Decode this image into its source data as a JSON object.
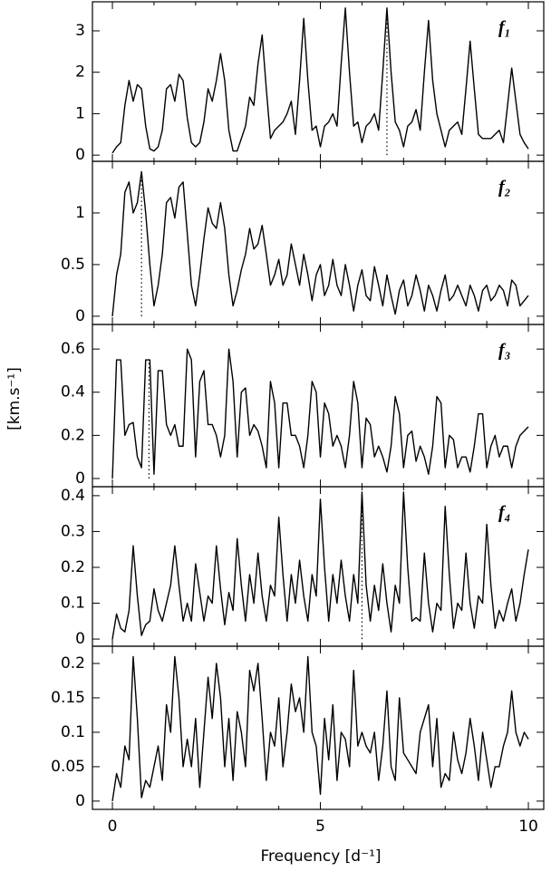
{
  "figure": {
    "xlabel": "Frequency [d⁻¹]",
    "ylabel": "[km.s⁻¹]"
  },
  "chart_data": [
    {
      "type": "line",
      "label": "f₁",
      "color": "#000000",
      "marker_x": 6.6,
      "xlim": [
        -0.48,
        10.37
      ],
      "xticks": [
        0,
        5,
        10
      ],
      "xminor": [
        1,
        2,
        3,
        4,
        6,
        7,
        8,
        9
      ],
      "ylim": [
        -0.15,
        3.7
      ],
      "yticks": [
        0,
        1,
        2,
        3
      ],
      "x": [
        0,
        0.1,
        0.2,
        0.3,
        0.4,
        0.5,
        0.6,
        0.7,
        0.8,
        0.9,
        1,
        1.1,
        1.2,
        1.3,
        1.4,
        1.5,
        1.6,
        1.7,
        1.8,
        1.9,
        2,
        2.1,
        2.2,
        2.3,
        2.4,
        2.5,
        2.6,
        2.7,
        2.8,
        2.9,
        3,
        3.1,
        3.2,
        3.3,
        3.4,
        3.5,
        3.6,
        3.7,
        3.8,
        3.9,
        4,
        4.1,
        4.2,
        4.3,
        4.4,
        4.5,
        4.6,
        4.7,
        4.8,
        4.9,
        5,
        5.1,
        5.2,
        5.3,
        5.4,
        5.5,
        5.6,
        5.7,
        5.8,
        5.9,
        6,
        6.1,
        6.2,
        6.3,
        6.4,
        6.5,
        6.6,
        6.7,
        6.8,
        6.9,
        7,
        7.1,
        7.2,
        7.3,
        7.4,
        7.5,
        7.6,
        7.7,
        7.8,
        7.9,
        8,
        8.1,
        8.2,
        8.3,
        8.4,
        8.5,
        8.6,
        8.7,
        8.8,
        8.9,
        9,
        9.1,
        9.2,
        9.3,
        9.4,
        9.5,
        9.6,
        9.7,
        9.8,
        9.9,
        10
      ],
      "values": [
        0.05,
        0.2,
        0.3,
        1.2,
        1.8,
        1.3,
        1.7,
        1.6,
        0.7,
        0.15,
        0.1,
        0.2,
        0.6,
        1.6,
        1.7,
        1.3,
        1.95,
        1.8,
        0.9,
        0.3,
        0.2,
        0.3,
        0.8,
        1.6,
        1.3,
        1.8,
        2.45,
        1.8,
        0.6,
        0.1,
        0.1,
        0.4,
        0.7,
        1.4,
        1.2,
        2.2,
        2.9,
        1.6,
        0.4,
        0.6,
        0.7,
        0.8,
        1.0,
        1.3,
        0.5,
        1.8,
        3.3,
        1.8,
        0.6,
        0.7,
        0.2,
        0.7,
        0.8,
        1.0,
        0.7,
        2.2,
        3.55,
        2.0,
        0.7,
        0.8,
        0.3,
        0.7,
        0.8,
        1.0,
        0.6,
        2.0,
        3.55,
        2.0,
        0.8,
        0.6,
        0.2,
        0.7,
        0.8,
        1.1,
        0.6,
        2.0,
        3.25,
        1.8,
        1.0,
        0.6,
        0.2,
        0.6,
        0.7,
        0.8,
        0.5,
        1.6,
        2.75,
        1.6,
        0.5,
        0.4,
        0.4,
        0.4,
        0.5,
        0.6,
        0.3,
        1.2,
        2.1,
        1.3,
        0.5,
        0.3,
        0.15
      ]
    },
    {
      "type": "line",
      "label": "f₂",
      "color": "#000000",
      "marker_x": 0.7,
      "xlim": [
        -0.48,
        10.37
      ],
      "xticks": [
        0,
        5,
        10
      ],
      "xminor": [
        1,
        2,
        3,
        4,
        6,
        7,
        8,
        9
      ],
      "ylim": [
        -0.08,
        1.5
      ],
      "yticks": [
        0,
        0.5,
        1
      ],
      "x": [
        0,
        0.1,
        0.2,
        0.3,
        0.4,
        0.5,
        0.6,
        0.7,
        0.8,
        0.9,
        1,
        1.1,
        1.2,
        1.3,
        1.4,
        1.5,
        1.6,
        1.7,
        1.8,
        1.9,
        2,
        2.1,
        2.2,
        2.3,
        2.4,
        2.5,
        2.6,
        2.7,
        2.8,
        2.9,
        3,
        3.1,
        3.2,
        3.3,
        3.4,
        3.5,
        3.6,
        3.7,
        3.8,
        3.9,
        4,
        4.1,
        4.2,
        4.3,
        4.4,
        4.5,
        4.6,
        4.7,
        4.8,
        4.9,
        5,
        5.1,
        5.2,
        5.3,
        5.4,
        5.5,
        5.6,
        5.7,
        5.8,
        5.9,
        6,
        6.1,
        6.2,
        6.3,
        6.4,
        6.5,
        6.6,
        6.7,
        6.8,
        6.9,
        7,
        7.1,
        7.2,
        7.3,
        7.4,
        7.5,
        7.6,
        7.7,
        7.8,
        7.9,
        8,
        8.1,
        8.2,
        8.3,
        8.4,
        8.5,
        8.6,
        8.7,
        8.8,
        8.9,
        9,
        9.1,
        9.2,
        9.3,
        9.4,
        9.5,
        9.6,
        9.7,
        9.8,
        9.9,
        10
      ],
      "values": [
        0.0,
        0.4,
        0.6,
        1.2,
        1.3,
        1.0,
        1.1,
        1.4,
        1.0,
        0.5,
        0.1,
        0.3,
        0.6,
        1.1,
        1.15,
        0.95,
        1.25,
        1.3,
        0.8,
        0.3,
        0.1,
        0.4,
        0.75,
        1.05,
        0.9,
        0.85,
        1.1,
        0.85,
        0.4,
        0.1,
        0.25,
        0.45,
        0.6,
        0.85,
        0.65,
        0.7,
        0.88,
        0.6,
        0.3,
        0.4,
        0.55,
        0.3,
        0.4,
        0.7,
        0.5,
        0.3,
        0.6,
        0.4,
        0.15,
        0.4,
        0.5,
        0.2,
        0.3,
        0.55,
        0.3,
        0.2,
        0.5,
        0.3,
        0.05,
        0.3,
        0.45,
        0.2,
        0.15,
        0.48,
        0.3,
        0.1,
        0.4,
        0.2,
        0.02,
        0.25,
        0.35,
        0.1,
        0.2,
        0.4,
        0.25,
        0.05,
        0.3,
        0.2,
        0.05,
        0.25,
        0.4,
        0.15,
        0.2,
        0.3,
        0.2,
        0.1,
        0.3,
        0.2,
        0.05,
        0.25,
        0.3,
        0.15,
        0.2,
        0.3,
        0.25,
        0.1,
        0.35,
        0.3,
        0.1,
        0.15,
        0.2
      ]
    },
    {
      "type": "line",
      "label": "f₃",
      "color": "#000000",
      "marker_x": 0.88,
      "xlim": [
        -0.48,
        10.37
      ],
      "xticks": [
        0,
        5,
        10
      ],
      "xminor": [
        1,
        2,
        3,
        4,
        6,
        7,
        8,
        9
      ],
      "ylim": [
        -0.038,
        0.714
      ],
      "yticks": [
        0,
        0.2,
        0.4,
        0.6
      ],
      "x": [
        0,
        0.1,
        0.2,
        0.3,
        0.4,
        0.5,
        0.6,
        0.7,
        0.8,
        0.9,
        1,
        1.1,
        1.2,
        1.3,
        1.4,
        1.5,
        1.6,
        1.7,
        1.8,
        1.9,
        2,
        2.1,
        2.2,
        2.3,
        2.4,
        2.5,
        2.6,
        2.7,
        2.8,
        2.9,
        3,
        3.1,
        3.2,
        3.3,
        3.4,
        3.5,
        3.6,
        3.7,
        3.8,
        3.9,
        4,
        4.1,
        4.2,
        4.3,
        4.4,
        4.5,
        4.6,
        4.7,
        4.8,
        4.9,
        5,
        5.1,
        5.2,
        5.3,
        5.4,
        5.5,
        5.6,
        5.7,
        5.8,
        5.9,
        6,
        6.1,
        6.2,
        6.3,
        6.4,
        6.5,
        6.6,
        6.7,
        6.8,
        6.9,
        7,
        7.1,
        7.2,
        7.3,
        7.4,
        7.5,
        7.6,
        7.7,
        7.8,
        7.9,
        8,
        8.1,
        8.2,
        8.3,
        8.4,
        8.5,
        8.6,
        8.7,
        8.8,
        8.9,
        9,
        9.1,
        9.2,
        9.3,
        9.4,
        9.5,
        9.6,
        9.7,
        9.8,
        9.9,
        10
      ],
      "values": [
        0.0,
        0.55,
        0.55,
        0.2,
        0.25,
        0.26,
        0.1,
        0.05,
        0.55,
        0.55,
        0.02,
        0.5,
        0.5,
        0.25,
        0.2,
        0.25,
        0.15,
        0.15,
        0.6,
        0.55,
        0.1,
        0.45,
        0.5,
        0.25,
        0.25,
        0.2,
        0.1,
        0.2,
        0.6,
        0.45,
        0.1,
        0.4,
        0.42,
        0.2,
        0.25,
        0.22,
        0.15,
        0.05,
        0.45,
        0.35,
        0.05,
        0.35,
        0.35,
        0.2,
        0.2,
        0.15,
        0.05,
        0.2,
        0.45,
        0.4,
        0.1,
        0.35,
        0.3,
        0.15,
        0.2,
        0.15,
        0.05,
        0.2,
        0.45,
        0.35,
        0.05,
        0.28,
        0.25,
        0.1,
        0.15,
        0.1,
        0.03,
        0.15,
        0.38,
        0.3,
        0.05,
        0.2,
        0.22,
        0.08,
        0.15,
        0.1,
        0.02,
        0.15,
        0.38,
        0.35,
        0.05,
        0.2,
        0.18,
        0.05,
        0.1,
        0.1,
        0.03,
        0.15,
        0.3,
        0.3,
        0.05,
        0.15,
        0.2,
        0.1,
        0.15,
        0.15,
        0.05,
        0.15,
        0.2,
        0.22,
        0.24
      ]
    },
    {
      "type": "line",
      "label": "f₄",
      "color": "#000000",
      "marker_x": 6.0,
      "xlim": [
        -0.48,
        10.37
      ],
      "xticks": [
        0,
        5,
        10
      ],
      "xminor": [
        1,
        2,
        3,
        4,
        6,
        7,
        8,
        9
      ],
      "ylim": [
        -0.02,
        0.425
      ],
      "yticks": [
        0,
        0.1,
        0.2,
        0.3,
        0.4
      ],
      "x": [
        0,
        0.1,
        0.2,
        0.3,
        0.4,
        0.5,
        0.6,
        0.7,
        0.8,
        0.9,
        1,
        1.1,
        1.2,
        1.3,
        1.4,
        1.5,
        1.6,
        1.7,
        1.8,
        1.9,
        2,
        2.1,
        2.2,
        2.3,
        2.4,
        2.5,
        2.6,
        2.7,
        2.8,
        2.9,
        3,
        3.1,
        3.2,
        3.3,
        3.4,
        3.5,
        3.6,
        3.7,
        3.8,
        3.9,
        4,
        4.1,
        4.2,
        4.3,
        4.4,
        4.5,
        4.6,
        4.7,
        4.8,
        4.9,
        5,
        5.1,
        5.2,
        5.3,
        5.4,
        5.5,
        5.6,
        5.7,
        5.8,
        5.9,
        6,
        6.1,
        6.2,
        6.3,
        6.4,
        6.5,
        6.6,
        6.7,
        6.8,
        6.9,
        7,
        7.1,
        7.2,
        7.3,
        7.4,
        7.5,
        7.6,
        7.7,
        7.8,
        7.9,
        8,
        8.1,
        8.2,
        8.3,
        8.4,
        8.5,
        8.6,
        8.7,
        8.8,
        8.9,
        9,
        9.1,
        9.2,
        9.3,
        9.4,
        9.5,
        9.6,
        9.7,
        9.8,
        9.9,
        10
      ],
      "values": [
        0.0,
        0.07,
        0.03,
        0.02,
        0.08,
        0.26,
        0.12,
        0.01,
        0.04,
        0.05,
        0.14,
        0.08,
        0.05,
        0.1,
        0.15,
        0.26,
        0.15,
        0.05,
        0.1,
        0.05,
        0.21,
        0.13,
        0.05,
        0.12,
        0.1,
        0.26,
        0.14,
        0.04,
        0.13,
        0.08,
        0.28,
        0.15,
        0.05,
        0.18,
        0.1,
        0.24,
        0.12,
        0.05,
        0.15,
        0.12,
        0.34,
        0.18,
        0.05,
        0.18,
        0.1,
        0.22,
        0.12,
        0.05,
        0.18,
        0.12,
        0.39,
        0.2,
        0.05,
        0.18,
        0.1,
        0.22,
        0.12,
        0.05,
        0.18,
        0.1,
        0.41,
        0.15,
        0.05,
        0.15,
        0.08,
        0.21,
        0.1,
        0.02,
        0.15,
        0.1,
        0.41,
        0.2,
        0.05,
        0.06,
        0.05,
        0.24,
        0.1,
        0.02,
        0.1,
        0.08,
        0.37,
        0.18,
        0.03,
        0.1,
        0.08,
        0.24,
        0.1,
        0.03,
        0.12,
        0.1,
        0.32,
        0.15,
        0.03,
        0.08,
        0.05,
        0.1,
        0.14,
        0.05,
        0.1,
        0.18,
        0.25
      ]
    },
    {
      "type": "line",
      "color": "#000000",
      "xlim": [
        -0.48,
        10.37
      ],
      "xticks": [
        0,
        5,
        10
      ],
      "xminor": [
        1,
        2,
        3,
        4,
        6,
        7,
        8,
        9
      ],
      "ylim": [
        -0.012,
        0.225
      ],
      "yticks": [
        0,
        0.05,
        0.1,
        0.15,
        0.2
      ],
      "x": [
        0,
        0.1,
        0.2,
        0.3,
        0.4,
        0.5,
        0.6,
        0.7,
        0.8,
        0.9,
        1,
        1.1,
        1.2,
        1.3,
        1.4,
        1.5,
        1.6,
        1.7,
        1.8,
        1.9,
        2,
        2.1,
        2.2,
        2.3,
        2.4,
        2.5,
        2.6,
        2.7,
        2.8,
        2.9,
        3,
        3.1,
        3.2,
        3.3,
        3.4,
        3.5,
        3.6,
        3.7,
        3.8,
        3.9,
        4,
        4.1,
        4.2,
        4.3,
        4.4,
        4.5,
        4.6,
        4.7,
        4.8,
        4.9,
        5,
        5.1,
        5.2,
        5.3,
        5.4,
        5.5,
        5.6,
        5.7,
        5.8,
        5.9,
        6,
        6.1,
        6.2,
        6.3,
        6.4,
        6.5,
        6.6,
        6.7,
        6.8,
        6.9,
        7,
        7.1,
        7.2,
        7.3,
        7.4,
        7.5,
        7.6,
        7.7,
        7.8,
        7.9,
        8,
        8.1,
        8.2,
        8.3,
        8.4,
        8.5,
        8.6,
        8.7,
        8.8,
        8.9,
        9,
        9.1,
        9.2,
        9.3,
        9.4,
        9.5,
        9.6,
        9.7,
        9.8,
        9.9,
        10
      ],
      "values": [
        0.0,
        0.04,
        0.02,
        0.08,
        0.06,
        0.21,
        0.12,
        0.005,
        0.03,
        0.02,
        0.05,
        0.08,
        0.03,
        0.14,
        0.1,
        0.21,
        0.15,
        0.05,
        0.09,
        0.05,
        0.12,
        0.02,
        0.1,
        0.18,
        0.12,
        0.2,
        0.15,
        0.05,
        0.12,
        0.03,
        0.13,
        0.1,
        0.05,
        0.19,
        0.16,
        0.2,
        0.12,
        0.03,
        0.1,
        0.08,
        0.15,
        0.05,
        0.1,
        0.17,
        0.13,
        0.15,
        0.1,
        0.21,
        0.1,
        0.08,
        0.01,
        0.12,
        0.06,
        0.14,
        0.03,
        0.1,
        0.09,
        0.05,
        0.19,
        0.08,
        0.1,
        0.08,
        0.07,
        0.1,
        0.03,
        0.08,
        0.16,
        0.05,
        0.03,
        0.15,
        0.07,
        0.06,
        0.05,
        0.04,
        0.1,
        0.12,
        0.14,
        0.05,
        0.12,
        0.02,
        0.04,
        0.03,
        0.1,
        0.06,
        0.04,
        0.07,
        0.12,
        0.08,
        0.03,
        0.1,
        0.06,
        0.02,
        0.05,
        0.05,
        0.08,
        0.1,
        0.16,
        0.1,
        0.08,
        0.1,
        0.09
      ]
    }
  ]
}
